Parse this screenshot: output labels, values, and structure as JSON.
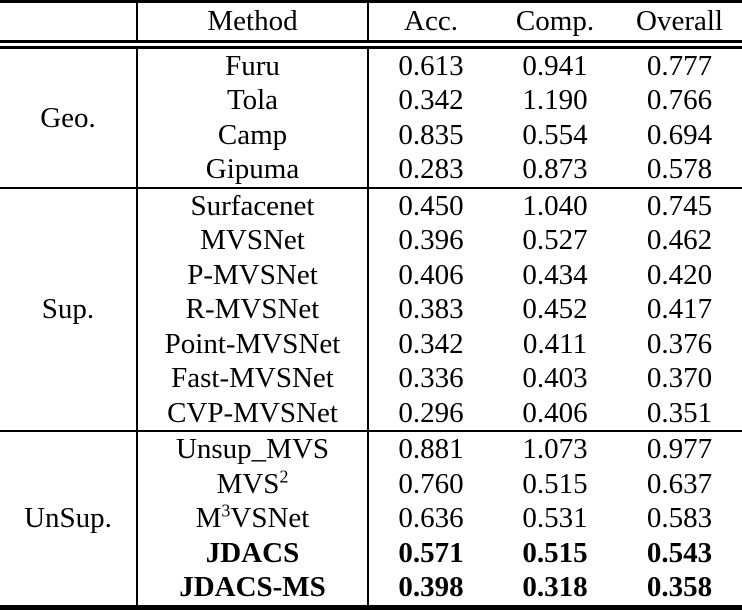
{
  "colors": {
    "background": "#ffffff",
    "text": "#000000",
    "border": "#000000"
  },
  "table": {
    "headers": {
      "group": "",
      "method": "Method",
      "acc": "Acc.",
      "comp": "Comp.",
      "overall": "Overall"
    },
    "groups": [
      {
        "label": "Geo.",
        "rows": [
          {
            "method": "Furu",
            "acc": "0.613",
            "comp": "0.941",
            "overall": "0.777",
            "bold": false
          },
          {
            "method": "Tola",
            "acc": "0.342",
            "comp": "1.190",
            "overall": "0.766",
            "bold": false
          },
          {
            "method": "Camp",
            "acc": "0.835",
            "comp": "0.554",
            "overall": "0.694",
            "bold": false
          },
          {
            "method": "Gipuma",
            "acc": "0.283",
            "comp": "0.873",
            "overall": "0.578",
            "bold": false
          }
        ]
      },
      {
        "label": "Sup.",
        "rows": [
          {
            "method": "Surfacenet",
            "acc": "0.450",
            "comp": "1.040",
            "overall": "0.745",
            "bold": false
          },
          {
            "method": "MVSNet",
            "acc": "0.396",
            "comp": "0.527",
            "overall": "0.462",
            "bold": false
          },
          {
            "method": "P-MVSNet",
            "acc": "0.406",
            "comp": "0.434",
            "overall": "0.420",
            "bold": false
          },
          {
            "method": "R-MVSNet",
            "acc": "0.383",
            "comp": "0.452",
            "overall": "0.417",
            "bold": false
          },
          {
            "method": "Point-MVSNet",
            "acc": "0.342",
            "comp": "0.411",
            "overall": "0.376",
            "bold": false
          },
          {
            "method": "Fast-MVSNet",
            "acc": "0.336",
            "comp": "0.403",
            "overall": "0.370",
            "bold": false
          },
          {
            "method": "CVP-MVSNet",
            "acc": "0.296",
            "comp": "0.406",
            "overall": "0.351",
            "bold": false
          }
        ]
      },
      {
        "label": "UnSup.",
        "rows": [
          {
            "method": "Unsup_MVS",
            "acc": "0.881",
            "comp": "1.073",
            "overall": "0.977",
            "bold": false
          },
          {
            "method": "MVS^2^",
            "acc": "0.760",
            "comp": "0.515",
            "overall": "0.637",
            "bold": false
          },
          {
            "method": "M^3^VSNet",
            "acc": "0.636",
            "comp": "0.531",
            "overall": "0.583",
            "bold": false
          },
          {
            "method": "JDACS",
            "acc": "0.571",
            "comp": "0.515",
            "overall": "0.543",
            "bold": true
          },
          {
            "method": "JDACS-MS",
            "acc": "0.398",
            "comp": "0.318",
            "overall": "0.358",
            "bold": true
          }
        ]
      }
    ]
  }
}
